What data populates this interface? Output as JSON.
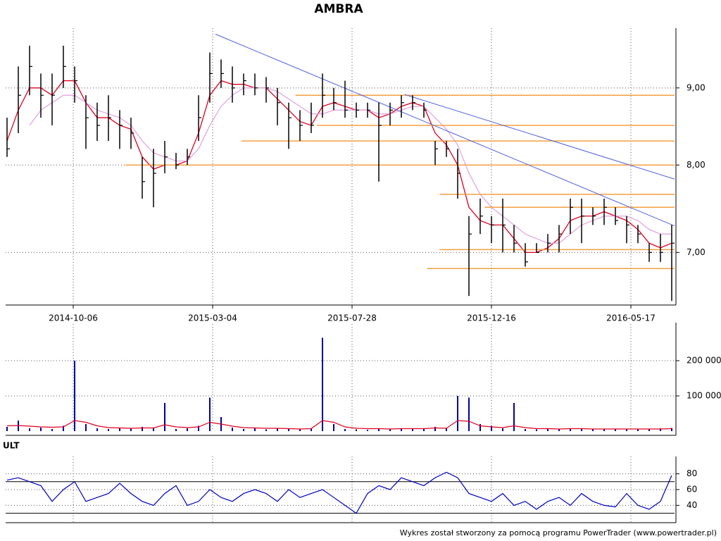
{
  "chart_data": [
    {
      "type": "ohlc",
      "title": "AMBRA",
      "log_scale": true,
      "grid": true,
      "x": [
        0,
        1,
        2,
        3,
        4,
        5,
        6,
        7,
        8,
        9,
        10,
        11,
        12,
        13,
        14,
        15,
        16,
        17,
        18,
        19,
        20,
        21,
        22,
        23,
        24,
        25,
        26,
        27,
        28,
        29,
        30,
        31,
        32,
        33,
        34,
        35,
        36,
        37,
        38,
        39,
        40,
        41,
        42,
        43,
        44,
        45,
        46,
        47,
        48,
        49,
        50,
        51,
        52,
        53,
        54,
        55,
        56,
        57,
        58,
        59
      ],
      "high": [
        8.6,
        9.3,
        9.6,
        9.2,
        9.2,
        9.6,
        9.3,
        8.9,
        8.8,
        8.9,
        8.7,
        8.6,
        8.1,
        8.2,
        8.3,
        8.15,
        8.2,
        8.9,
        9.5,
        9.4,
        9.3,
        9.2,
        9.2,
        9.15,
        9.0,
        8.8,
        8.7,
        8.8,
        9.2,
        9.0,
        9.1,
        8.8,
        8.8,
        8.8,
        8.8,
        8.9,
        8.9,
        8.8,
        8.3,
        8.3,
        8.2,
        7.4,
        7.6,
        7.4,
        7.6,
        7.3,
        7.1,
        7.1,
        7.2,
        7.3,
        7.6,
        7.6,
        7.5,
        7.6,
        7.5,
        7.4,
        7.3,
        7.1,
        7.2,
        7.3
      ],
      "low": [
        8.1,
        8.4,
        8.9,
        8.6,
        8.5,
        9.0,
        8.8,
        8.2,
        8.3,
        8.3,
        8.2,
        8.2,
        7.6,
        7.5,
        7.9,
        7.95,
        8.0,
        8.3,
        8.8,
        9.0,
        8.8,
        8.9,
        8.9,
        8.8,
        8.5,
        8.2,
        8.3,
        8.4,
        8.6,
        8.7,
        8.6,
        8.6,
        8.6,
        7.8,
        8.5,
        8.6,
        8.7,
        8.6,
        8.0,
        8.1,
        7.6,
        6.55,
        7.2,
        7.1,
        7.0,
        7.0,
        6.85,
        7.0,
        7.0,
        7.0,
        7.2,
        7.1,
        7.3,
        7.3,
        7.3,
        7.1,
        7.1,
        6.9,
        6.9,
        6.5
      ],
      "close": [
        8.2,
        8.9,
        9.3,
        8.9,
        8.9,
        9.3,
        9.1,
        8.6,
        8.5,
        8.6,
        8.5,
        8.4,
        7.8,
        7.9,
        8.1,
        8.0,
        8.1,
        8.6,
        9.2,
        9.2,
        9.0,
        9.1,
        9.0,
        9.0,
        8.8,
        8.6,
        8.5,
        8.5,
        8.9,
        8.8,
        8.7,
        8.7,
        8.7,
        8.5,
        8.7,
        8.8,
        8.8,
        8.7,
        8.2,
        8.2,
        7.9,
        7.2,
        7.4,
        7.3,
        7.3,
        7.1,
        6.9,
        7.0,
        7.1,
        7.2,
        7.5,
        7.4,
        7.4,
        7.5,
        7.35,
        7.3,
        7.2,
        7.0,
        7.0,
        7.1
      ],
      "bar_color": "#000000",
      "series": [
        {
          "color": "#e00020",
          "values": [
            8.3,
            8.7,
            9.0,
            9.0,
            8.9,
            9.1,
            9.1,
            8.8,
            8.6,
            8.6,
            8.5,
            8.45,
            8.1,
            7.95,
            8.0,
            8.0,
            8.05,
            8.4,
            8.9,
            9.1,
            9.05,
            9.05,
            9.0,
            9.0,
            8.85,
            8.7,
            8.55,
            8.5,
            8.75,
            8.8,
            8.75,
            8.7,
            8.7,
            8.6,
            8.65,
            8.75,
            8.8,
            8.75,
            8.4,
            8.25,
            8.0,
            7.5,
            7.35,
            7.3,
            7.3,
            7.15,
            7.0,
            7.0,
            7.05,
            7.15,
            7.35,
            7.4,
            7.4,
            7.45,
            7.4,
            7.35,
            7.25,
            7.1,
            7.05,
            7.1
          ]
        },
        {
          "color": "#e0a8e0",
          "values": [
            null,
            null,
            8.5,
            8.7,
            8.8,
            8.9,
            8.9,
            8.8,
            8.7,
            8.65,
            8.6,
            8.5,
            8.3,
            8.15,
            8.1,
            8.05,
            8.05,
            8.2,
            8.5,
            8.75,
            8.9,
            9.0,
            9.0,
            9.0,
            8.95,
            8.85,
            8.75,
            8.65,
            8.65,
            8.7,
            8.7,
            8.7,
            8.7,
            8.65,
            8.65,
            8.7,
            8.75,
            8.75,
            8.6,
            8.45,
            8.25,
            7.9,
            7.65,
            7.5,
            7.4,
            7.3,
            7.2,
            7.15,
            7.1,
            7.1,
            7.2,
            7.3,
            7.35,
            7.4,
            7.4,
            7.4,
            7.35,
            7.25,
            7.2,
            7.2
          ]
        }
      ],
      "hline_color": "#f5a040",
      "hlines": [
        {
          "value": 8.9,
          "x_start": 25.6
        },
        {
          "value": 8.5,
          "x_start": 27.5
        },
        {
          "value": 8.3,
          "x_start": 20.8
        },
        {
          "value": 8.0,
          "x_start": 10.5
        },
        {
          "value": 7.65,
          "x_start": 38.4
        },
        {
          "value": 7.5,
          "x_start": 42.4
        },
        {
          "value": 7.03,
          "x_start": 38.4
        },
        {
          "value": 6.83,
          "x_start": 37.3
        }
      ],
      "trend_color": "#5060e0",
      "trendlines": [
        {
          "x": [
            18.5,
            59.25
          ],
          "y": [
            9.77,
            7.29
          ]
        },
        {
          "x": [
            35.3,
            59.25
          ],
          "y": [
            8.91,
            7.83
          ]
        }
      ],
      "xlim": [
        -0.125,
        59.25
      ],
      "xticks": [
        {
          "value": 5.875,
          "label": "2014-10-06"
        },
        {
          "value": 18.25,
          "label": "2015-03-04"
        },
        {
          "value": 30.625,
          "label": "2015-07-28"
        },
        {
          "value": 43,
          "label": "2015-12-16"
        },
        {
          "value": 55.375,
          "label": "2016-05-17"
        }
      ],
      "ylim": [
        6.46,
        9.86
      ],
      "yticks": [
        {
          "value": 7,
          "label": "7,00"
        },
        {
          "value": 8,
          "label": "8,00"
        },
        {
          "value": 9,
          "label": "9,00"
        }
      ]
    },
    {
      "type": "bar",
      "grid": true,
      "color": "#0000a0",
      "x": [
        0,
        1,
        2,
        3,
        4,
        5,
        6,
        7,
        8,
        9,
        10,
        11,
        12,
        13,
        14,
        15,
        16,
        17,
        18,
        19,
        20,
        21,
        22,
        23,
        24,
        25,
        26,
        27,
        28,
        29,
        30,
        31,
        32,
        33,
        34,
        35,
        36,
        37,
        38,
        39,
        40,
        41,
        42,
        43,
        44,
        45,
        46,
        47,
        48,
        49,
        50,
        51,
        52,
        53,
        54,
        55,
        56,
        57,
        58,
        59
      ],
      "values": [
        12000,
        30000,
        8000,
        10000,
        6000,
        15000,
        200000,
        20000,
        8000,
        6000,
        10000,
        7000,
        12000,
        9000,
        80000,
        6000,
        8000,
        15000,
        95000,
        40000,
        10000,
        6000,
        8000,
        5000,
        7000,
        6000,
        5000,
        8000,
        265000,
        20000,
        6000,
        5000,
        4000,
        6000,
        5000,
        8000,
        6000,
        7000,
        12000,
        8000,
        100000,
        95000,
        20000,
        15000,
        8000,
        80000,
        6000,
        5000,
        6000,
        5000,
        8000,
        6000,
        5000,
        6000,
        7000,
        5000,
        6000,
        5000,
        8000,
        9000
      ],
      "series": [
        {
          "color": "#e00020",
          "values": [
            15000,
            16000,
            14000,
            12000,
            11000,
            12000,
            30000,
            25000,
            15000,
            10000,
            9000,
            8000,
            9000,
            9000,
            18000,
            12000,
            10000,
            12000,
            25000,
            20000,
            14000,
            10000,
            9000,
            8000,
            8000,
            7000,
            6000,
            7000,
            30000,
            25000,
            12000,
            8000,
            7000,
            7000,
            6000,
            7000,
            7000,
            7000,
            9000,
            8000,
            30000,
            28000,
            15000,
            12000,
            10000,
            15000,
            10000,
            7000,
            7000,
            6000,
            7000,
            7000,
            6000,
            6000,
            6000,
            6000,
            6000,
            6000,
            6000,
            7000
          ]
        }
      ],
      "xlim": [
        -0.125,
        59.25
      ],
      "ylim": [
        0,
        304000
      ],
      "yticks": [
        {
          "value": 100000,
          "label": "100 000"
        },
        {
          "value": 200000,
          "label": "200 000"
        }
      ]
    },
    {
      "type": "line",
      "title": "ULT",
      "grid": true,
      "color": "#0000c0",
      "x": [
        0,
        1,
        2,
        3,
        4,
        5,
        6,
        7,
        8,
        9,
        10,
        11,
        12,
        13,
        14,
        15,
        16,
        17,
        18,
        19,
        20,
        21,
        22,
        23,
        24,
        25,
        26,
        27,
        28,
        29,
        30,
        31,
        32,
        33,
        34,
        35,
        36,
        37,
        38,
        39,
        40,
        41,
        42,
        43,
        44,
        45,
        46,
        47,
        48,
        49,
        50,
        51,
        52,
        53,
        54,
        55,
        56,
        57,
        58,
        59
      ],
      "values": [
        72,
        75,
        70,
        65,
        45,
        60,
        70,
        45,
        50,
        55,
        68,
        55,
        45,
        40,
        55,
        65,
        40,
        45,
        60,
        50,
        45,
        55,
        60,
        55,
        45,
        60,
        50,
        55,
        60,
        50,
        40,
        30,
        55,
        65,
        60,
        75,
        70,
        65,
        75,
        82,
        75,
        55,
        50,
        45,
        55,
        40,
        45,
        35,
        45,
        50,
        40,
        55,
        45,
        40,
        38,
        55,
        40,
        35,
        45,
        78
      ],
      "levels": [
        30,
        70
      ],
      "xlim": [
        -0.125,
        59.25
      ],
      "ylim": [
        18,
        102
      ],
      "yticks": [
        40,
        60,
        80
      ]
    },
    {
      "type": "text",
      "footer": "Wykres został stworzony za pomocą programu PowerTrader (www.powertrader.pl)"
    }
  ]
}
